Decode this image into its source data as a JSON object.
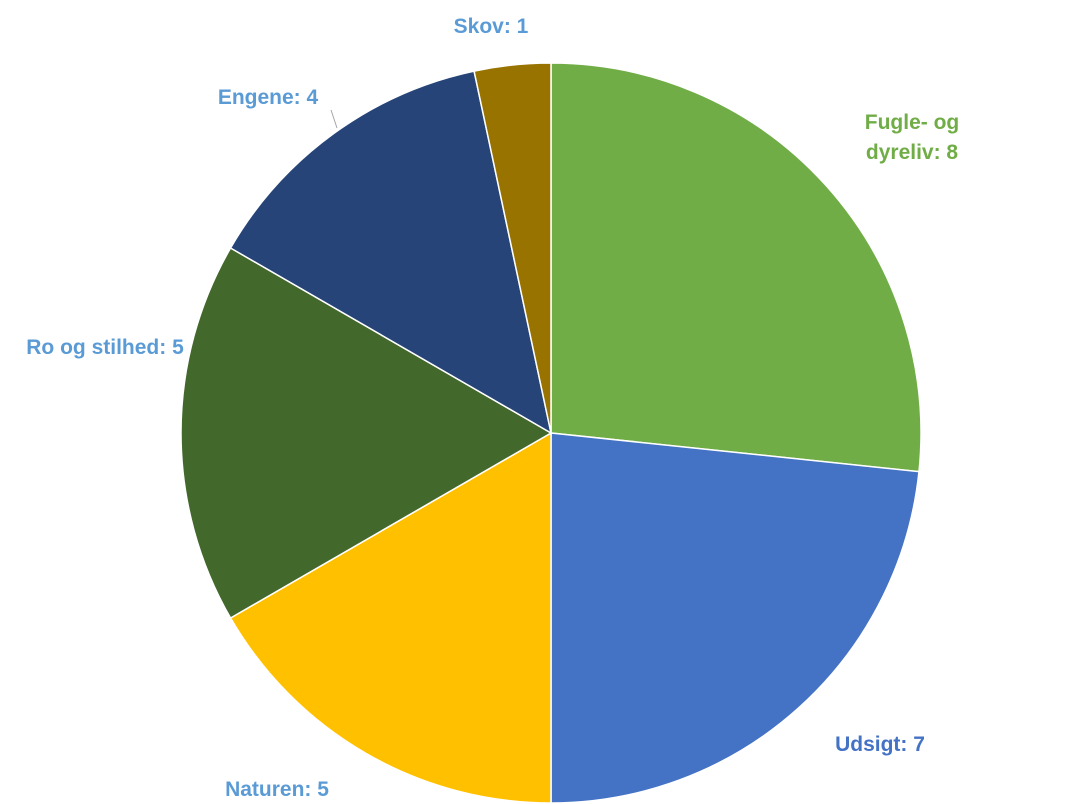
{
  "chart_data": {
    "type": "pie",
    "values": [
      8,
      7,
      5,
      5,
      4,
      1
    ],
    "value_labels": [
      "Fugle- og dyreliv: 8",
      "Udsigt: 7",
      "Naturen: 5",
      "Ro og stilhed: 5",
      "Engene: 4",
      "Skov: 1"
    ],
    "colors": [
      "#70ad47",
      "#4472c4",
      "#ffc000",
      "#43682b",
      "#264478",
      "#997300"
    ],
    "label_colors": [
      "#70ad47",
      "#4472c4",
      "#5b9bd5",
      "#5b9bd5",
      "#5b9bd5",
      "#5b9bd5"
    ]
  }
}
